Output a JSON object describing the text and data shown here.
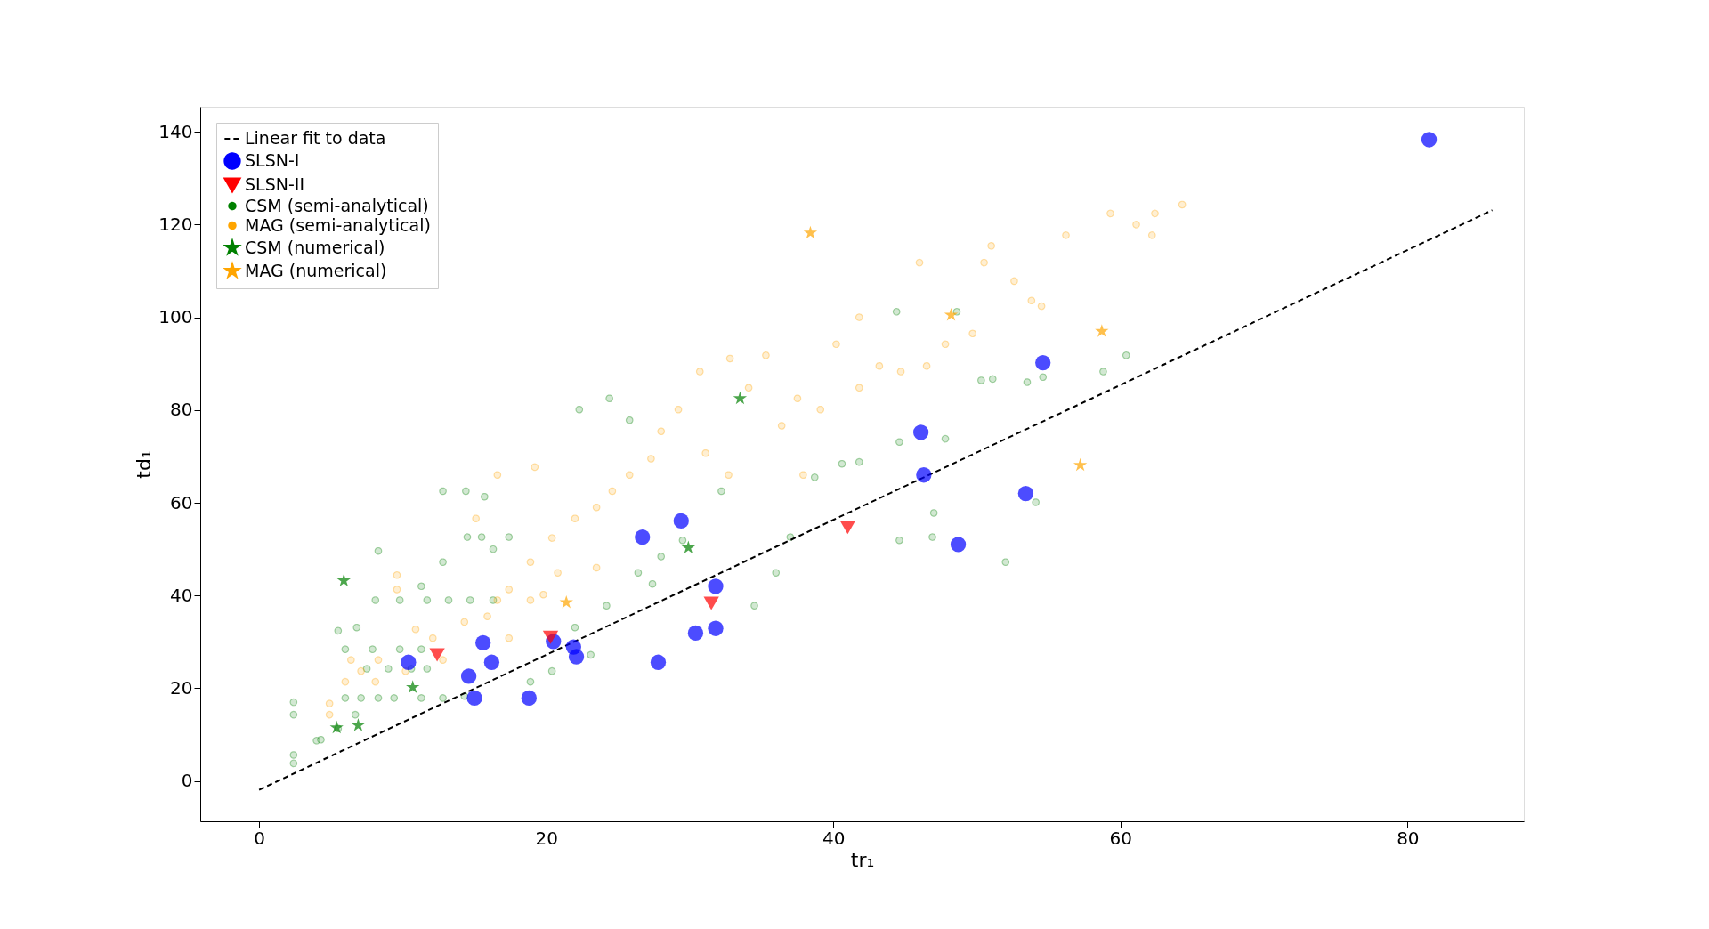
{
  "chart_data": {
    "type": "scatter",
    "xlabel": "tr₁",
    "ylabel": "td₁",
    "xlim": [
      -4.1,
      88.1
    ],
    "ylim": [
      -8.7,
      145.4
    ],
    "xticks": [
      0,
      20,
      40,
      60,
      80
    ],
    "yticks": [
      0,
      20,
      40,
      60,
      80,
      100,
      120,
      140
    ],
    "grid": false,
    "legend": "top left",
    "series": [
      {
        "name": "Linear fit to data",
        "type": "line",
        "color": "#000000",
        "line_style": "dashed",
        "marker": "none",
        "x": [
          0,
          85.9
        ],
        "values": [
          -1.9,
          123.1
        ]
      },
      {
        "name": "SLSN-I",
        "color": "#0000ff",
        "marker": "circle",
        "x": [
          81.5,
          54.6,
          46.1,
          46.3,
          53.4,
          48.7,
          26.7,
          29.4,
          31.8,
          30.4,
          31.8,
          27.8,
          20.5,
          21.9,
          22.1,
          18.8,
          15.0,
          14.6,
          15.6,
          16.2,
          10.4
        ],
        "values": [
          138.3,
          90.2,
          75.2,
          66.0,
          62.0,
          51.0,
          52.6,
          56.1,
          42.0,
          31.9,
          32.9,
          25.6,
          30.1,
          28.9,
          26.8,
          17.9,
          17.9,
          22.6,
          29.8,
          25.6,
          25.6
        ]
      },
      {
        "name": "SLSN-II",
        "color": "#ff0000",
        "marker": "triangle",
        "x": [
          12.4,
          20.3,
          31.5,
          41.0
        ],
        "values": [
          27.2,
          31.0,
          38.3,
          54.7
        ]
      },
      {
        "name": "CSM (semi-analytical)",
        "color": "#008000",
        "marker": "circle",
        "x": [
          2.4,
          2.4,
          2.4,
          2.4,
          4,
          4.3,
          5.5,
          6.7,
          6,
          7.1,
          8.3,
          9.4,
          11.3,
          12.8,
          14.3,
          7.5,
          9.0,
          10.6,
          11.7,
          6,
          7.9,
          9.8,
          11.3,
          5.5,
          8.1,
          9.8,
          11.7,
          13.2,
          14.7,
          16.3,
          11.3,
          12.8,
          16.3,
          12.8,
          14.4,
          15.7,
          14.5,
          15.5,
          17.4,
          8.3,
          6.8,
          22.3,
          24.4,
          25.8,
          26.4,
          27.4,
          28,
          29.5,
          32.2,
          34.5,
          36,
          37,
          38.7,
          40.6,
          41.8,
          44.6,
          44.6,
          46.9,
          47.8,
          50.3,
          51.1,
          53.5,
          54.6,
          60.4,
          58.8,
          44.4,
          48.6,
          52,
          54.1,
          47,
          18.9,
          22,
          20.4,
          23.1,
          24.2
        ],
        "values": [
          17,
          14.3,
          5.6,
          3.8,
          8.7,
          8.9,
          11.3,
          14.3,
          17.9,
          17.9,
          17.9,
          17.9,
          17.9,
          17.9,
          18.3,
          24.2,
          24.2,
          24.2,
          24.2,
          28.4,
          28.4,
          28.4,
          28.4,
          32.4,
          39,
          39,
          39,
          39,
          39,
          39,
          42,
          47.2,
          50,
          62.5,
          62.5,
          61.3,
          52.6,
          52.6,
          52.6,
          49.6,
          33.1,
          80.1,
          82.5,
          77.8,
          44.9,
          42.5,
          48.4,
          51.9,
          62.5,
          37.8,
          44.9,
          52.6,
          65.5,
          68.4,
          68.8,
          73.1,
          51.9,
          52.6,
          73.8,
          86.4,
          86.7,
          86,
          87.1,
          91.8,
          88.3,
          101.2,
          101.2,
          47.2,
          60.1,
          57.8,
          21.4,
          33.1,
          23.7,
          27.2,
          37.8
        ]
      },
      {
        "name": "MAG (semi-analytical)",
        "color": "#ffa500",
        "marker": "circle",
        "x": [
          4.9,
          4.9,
          6,
          7.1,
          8.3,
          9.6,
          9.6,
          10.9,
          12.1,
          12.8,
          14.3,
          15.9,
          16.6,
          17.4,
          18.9,
          19.8,
          20.8,
          20.4,
          22,
          23.5,
          24.6,
          25.8,
          27.3,
          28,
          29.2,
          30.7,
          32.8,
          34.1,
          35.3,
          36.4,
          37.5,
          39.1,
          40.2,
          41.8,
          43.2,
          44.7,
          46,
          46.5,
          47.8,
          49.7,
          50.5,
          51,
          52.6,
          53.8,
          54.5,
          56.2,
          59.3,
          61.1,
          62.4,
          64.3,
          62.2,
          15.1,
          16.6,
          19.2,
          17.4,
          18.9,
          23.5,
          31.1,
          32.7,
          37.9,
          41.8,
          8.1,
          10.2,
          6.4
        ],
        "values": [
          16.7,
          14.3,
          21.4,
          23.7,
          26.1,
          44.4,
          41.3,
          32.7,
          30.8,
          26.1,
          34.3,
          35.5,
          39,
          41.3,
          47.2,
          40.2,
          44.9,
          52.4,
          56.6,
          59,
          62.5,
          66,
          69.5,
          75.4,
          80.1,
          88.3,
          91.1,
          84.8,
          91.8,
          76.6,
          82.5,
          80.1,
          94.2,
          100,
          89.5,
          88.3,
          111.8,
          89.5,
          94.2,
          96.5,
          111.8,
          115.4,
          107.8,
          103.6,
          102.4,
          117.7,
          122.4,
          120,
          122.4,
          124.3,
          117.7,
          56.6,
          66,
          67.7,
          30.8,
          39,
          46,
          70.7,
          66,
          66,
          84.8,
          21.4,
          23.7,
          26.1
        ]
      },
      {
        "name": "CSM (numerical)",
        "color": "#008000",
        "marker": "star",
        "x": [
          5.9,
          10.7,
          5.4,
          6.9,
          29.9,
          33.5
        ],
        "values": [
          43.2,
          20.2,
          11.5,
          12.0,
          50.3,
          82.5
        ]
      },
      {
        "name": "MAG (numerical)",
        "color": "#ffa500",
        "marker": "star",
        "x": [
          21.4,
          38.4,
          48.2,
          58.7,
          57.2
        ],
        "values": [
          38.5,
          118.2,
          100.5,
          97.0,
          68.1
        ]
      }
    ]
  }
}
